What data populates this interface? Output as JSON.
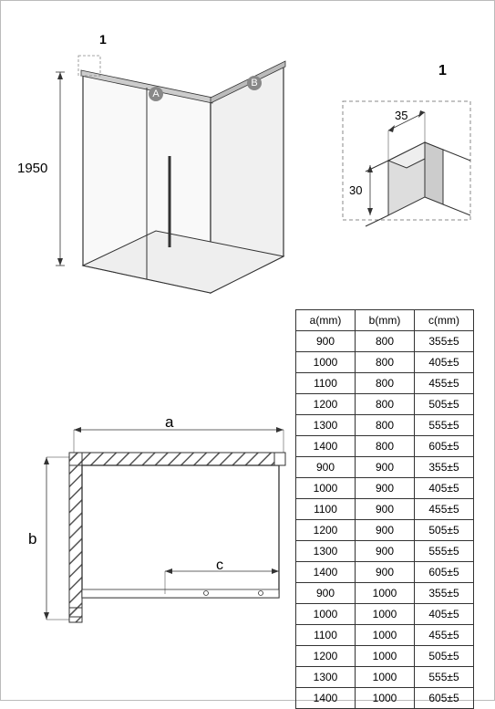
{
  "drawing": {
    "height_label": "1950",
    "callout_number": "1",
    "markers": [
      "A",
      "B"
    ],
    "detail": {
      "number": "1",
      "width_label": "35",
      "depth_label": "30"
    },
    "plan": {
      "labels": [
        "a",
        "b",
        "c"
      ]
    },
    "stroke_color": "#333333",
    "fill_light": "#f6f6f6",
    "fill_gray": "#cccccc",
    "hatch_color": "#666666",
    "dash_color": "#888888"
  },
  "table": {
    "columns": [
      "a(mm)",
      "b(mm)",
      "c(mm)"
    ],
    "rows": [
      [
        "900",
        "800",
        "355±5"
      ],
      [
        "1000",
        "800",
        "405±5"
      ],
      [
        "1100",
        "800",
        "455±5"
      ],
      [
        "1200",
        "800",
        "505±5"
      ],
      [
        "1300",
        "800",
        "555±5"
      ],
      [
        "1400",
        "800",
        "605±5"
      ],
      [
        "900",
        "900",
        "355±5"
      ],
      [
        "1000",
        "900",
        "405±5"
      ],
      [
        "1100",
        "900",
        "455±5"
      ],
      [
        "1200",
        "900",
        "505±5"
      ],
      [
        "1300",
        "900",
        "555±5"
      ],
      [
        "1400",
        "900",
        "605±5"
      ],
      [
        "900",
        "1000",
        "355±5"
      ],
      [
        "1000",
        "1000",
        "405±5"
      ],
      [
        "1100",
        "1000",
        "455±5"
      ],
      [
        "1200",
        "1000",
        "505±5"
      ],
      [
        "1300",
        "1000",
        "555±5"
      ],
      [
        "1400",
        "1000",
        "605±5"
      ]
    ]
  }
}
